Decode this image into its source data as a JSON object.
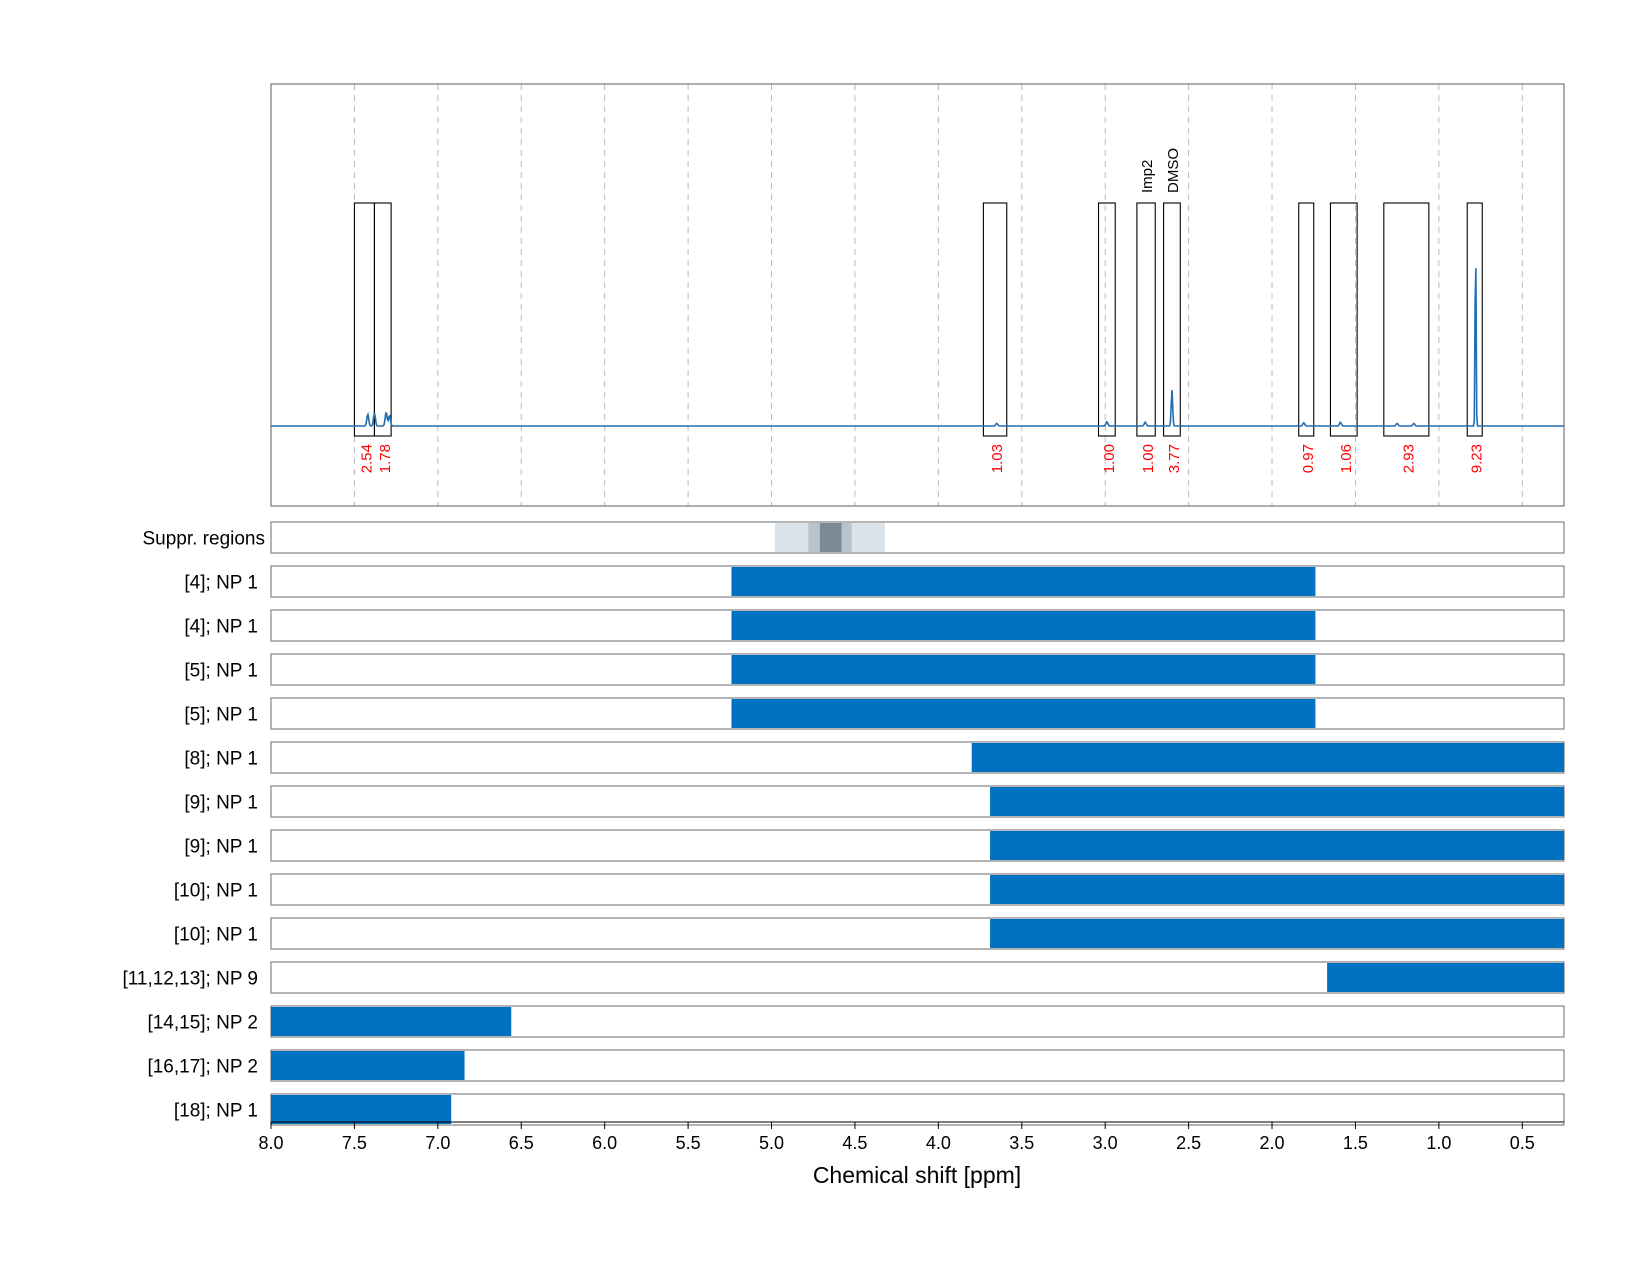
{
  "chart_data": {
    "type": "line",
    "xlabel": "Chemical shift [ppm]",
    "xlim": [
      8.0,
      0.25
    ],
    "x_reversed": true,
    "x_ticks": [
      8.0,
      7.5,
      7.0,
      6.5,
      6.0,
      5.5,
      5.0,
      4.5,
      4.0,
      3.5,
      3.0,
      2.5,
      2.0,
      1.5,
      1.0,
      0.5
    ],
    "x_tick_labels": [
      "8.0",
      "7.5",
      "7.0",
      "6.5",
      "6.0",
      "5.5",
      "5.0",
      "4.5",
      "4.0",
      "3.5",
      "3.0",
      "2.5",
      "2.0",
      "1.5",
      "1.0",
      "0.5"
    ],
    "grid": true,
    "colors": {
      "spectrum": "#1f6fb4",
      "bar": "#0070c0",
      "integral_label": "#ff0000",
      "frame": "#777777",
      "grid": "#bbbbbb"
    },
    "spectrum_peaks": [
      {
        "x": 7.42,
        "h": 0.055
      },
      {
        "x": 7.38,
        "h": 0.06
      },
      {
        "x": 7.31,
        "h": 0.065
      },
      {
        "x": 7.29,
        "h": 0.05
      },
      {
        "x": 3.65,
        "h": 0.012
      },
      {
        "x": 2.99,
        "h": 0.02
      },
      {
        "x": 2.76,
        "h": 0.018
      },
      {
        "x": 2.6,
        "h": 0.17
      },
      {
        "x": 1.81,
        "h": 0.015
      },
      {
        "x": 1.59,
        "h": 0.018
      },
      {
        "x": 1.25,
        "h": 0.012
      },
      {
        "x": 1.15,
        "h": 0.012
      },
      {
        "x": 0.78,
        "h": 0.95
      }
    ],
    "integral_regions": [
      {
        "x1": 7.5,
        "x2": 7.38,
        "integral": "2.54"
      },
      {
        "x1": 7.38,
        "x2": 7.28,
        "integral": "1.78"
      },
      {
        "x1": 3.73,
        "x2": 3.59,
        "integral": "1.03"
      },
      {
        "x1": 3.04,
        "x2": 2.94,
        "integral": "1.00"
      },
      {
        "x1": 2.81,
        "x2": 2.7,
        "integral": "1.00",
        "label": "Imp2"
      },
      {
        "x1": 2.65,
        "x2": 2.55,
        "integral": "3.77",
        "label": "DMSO"
      },
      {
        "x1": 1.84,
        "x2": 1.75,
        "integral": "0.97"
      },
      {
        "x1": 1.65,
        "x2": 1.49,
        "integral": "1.06"
      },
      {
        "x1": 1.33,
        "x2": 1.06,
        "integral": "2.93"
      },
      {
        "x1": 0.83,
        "x2": 0.74,
        "integral": "9.23"
      }
    ],
    "suppr_regions": {
      "label": "Suppr. regions",
      "bands": [
        {
          "x1": 4.98,
          "x2": 4.32,
          "shade": "#dbe3e9"
        },
        {
          "x1": 4.78,
          "x2": 4.52,
          "shade": "#b8c4cd"
        },
        {
          "x1": 4.71,
          "x2": 4.58,
          "shade": "#7b8a94"
        }
      ]
    },
    "series": [
      {
        "label": "[4]; NP 1",
        "x1": 5.24,
        "x2": 1.74
      },
      {
        "label": "[4]; NP 1",
        "x1": 5.24,
        "x2": 1.74
      },
      {
        "label": "[5]; NP 1",
        "x1": 5.24,
        "x2": 1.74
      },
      {
        "label": "[5]; NP 1",
        "x1": 5.24,
        "x2": 1.74
      },
      {
        "label": "[8]; NP 1",
        "x1": 3.8,
        "x2": 0.25
      },
      {
        "label": "[9]; NP 1",
        "x1": 3.69,
        "x2": 0.25
      },
      {
        "label": "[9]; NP 1",
        "x1": 3.69,
        "x2": 0.25
      },
      {
        "label": "[10]; NP 1",
        "x1": 3.69,
        "x2": 0.25
      },
      {
        "label": "[10]; NP 1",
        "x1": 3.69,
        "x2": 0.25
      },
      {
        "label": "[11,12,13]; NP 9",
        "x1": 1.67,
        "x2": 0.25
      },
      {
        "label": "[14,15]; NP 2",
        "x1": 8.0,
        "x2": 6.56
      },
      {
        "label": "[16,17]; NP 2",
        "x1": 8.0,
        "x2": 6.84
      },
      {
        "label": "[18]; NP 1",
        "x1": 8.0,
        "x2": 6.92
      }
    ]
  }
}
